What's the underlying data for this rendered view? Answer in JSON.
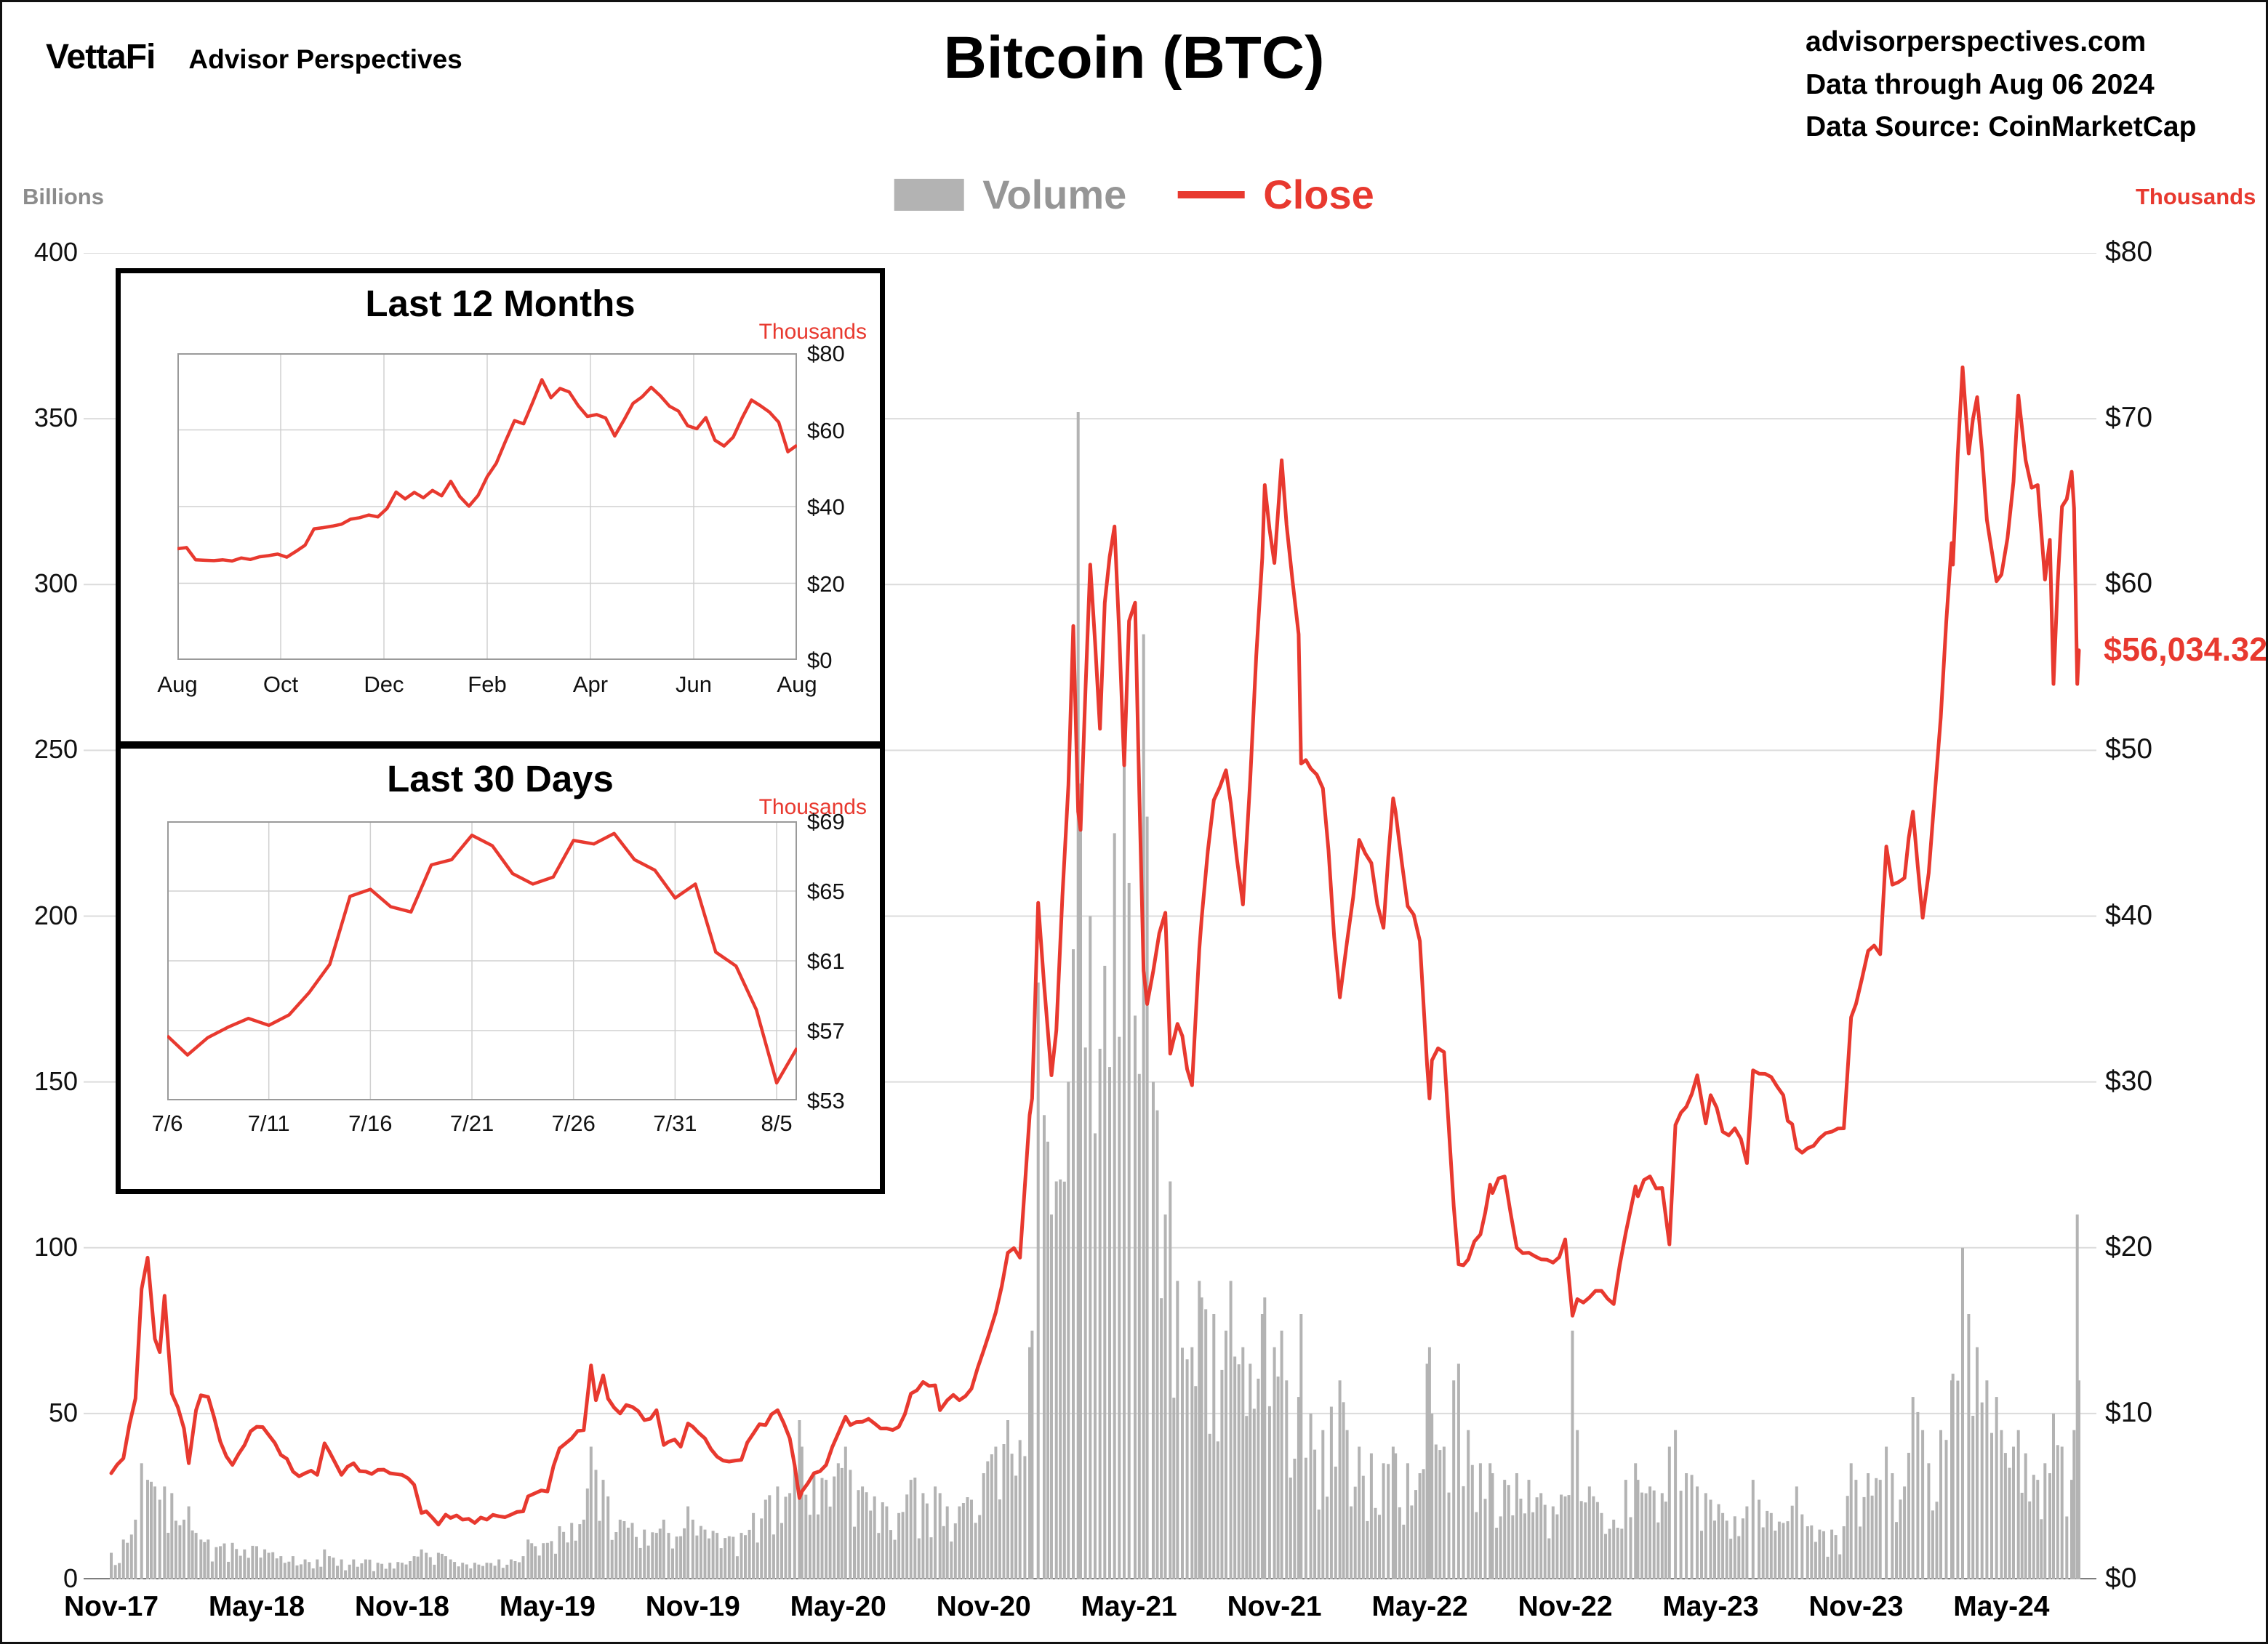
{
  "header": {
    "logo": "VettaFi",
    "logo_sub": "Advisor Perspectives",
    "title": "Bitcoin (BTC)",
    "info_lines": [
      "advisorperspectives.com",
      "Data through Aug 06 2024",
      "Data Source: CoinMarketCap"
    ]
  },
  "legend": {
    "volume_label": "Volume",
    "close_label": "Close"
  },
  "colors": {
    "close": "#e8392f",
    "volume": "#b3b3b3",
    "grid": "#dcdcdc",
    "axis": "#444444",
    "legend_volume_text": "#969696"
  },
  "chart_data": [
    {
      "type": "line",
      "title": "Bitcoin (BTC)",
      "series": [
        {
          "name": "Volume",
          "type": "bar",
          "axis": "left",
          "unit": "billions USD"
        },
        {
          "name": "Close",
          "type": "line",
          "axis": "right",
          "unit": "thousands USD"
        }
      ],
      "left_axis": {
        "label": "Billions",
        "range": [
          0,
          400
        ],
        "ticks": [
          "400",
          "350",
          "300",
          "250",
          "200",
          "150",
          "100",
          "50",
          "0"
        ]
      },
      "right_axis": {
        "label": "Thousands",
        "range": [
          0,
          80
        ],
        "ticks": [
          "$80",
          "$70",
          "$60",
          "$50",
          "$40",
          "$30",
          "$20",
          "$10",
          "$0"
        ]
      },
      "x_axis": {
        "ticks": [
          {
            "label": "Nov-17",
            "m": 0
          },
          {
            "label": "May-18",
            "m": 6
          },
          {
            "label": "Nov-18",
            "m": 12
          },
          {
            "label": "May-19",
            "m": 18
          },
          {
            "label": "Nov-19",
            "m": 24
          },
          {
            "label": "May-20",
            "m": 30
          },
          {
            "label": "Nov-20",
            "m": 36
          },
          {
            "label": "May-21",
            "m": 42
          },
          {
            "label": "Nov-21",
            "m": 48
          },
          {
            "label": "May-22",
            "m": 54
          },
          {
            "label": "Nov-22",
            "m": 60
          },
          {
            "label": "May-23",
            "m": 66
          },
          {
            "label": "Nov-23",
            "m": 72
          },
          {
            "label": "May-24",
            "m": 78
          }
        ],
        "span_months": 81.2
      },
      "last_close_label": "$56,034.32",
      "last_close_value": 56.034,
      "points_format": [
        "month_offset_from_Nov-2017",
        "close_usd_thousands",
        "volume_usd_billions"
      ],
      "points": [
        [
          0,
          6.4,
          8
        ],
        [
          0.5,
          7.3,
          12
        ],
        [
          1,
          10.9,
          18
        ],
        [
          1.25,
          17.5,
          35
        ],
        [
          1.5,
          19.4,
          30
        ],
        [
          1.8,
          14.5,
          28
        ],
        [
          2,
          13.7,
          24
        ],
        [
          2.2,
          17.1,
          28
        ],
        [
          2.5,
          11.2,
          26
        ],
        [
          3,
          9.1,
          18
        ],
        [
          3.2,
          7.0,
          22
        ],
        [
          3.5,
          10.2,
          14
        ],
        [
          3.7,
          11.1,
          12
        ],
        [
          4,
          11.0,
          12
        ],
        [
          4.5,
          8.3,
          10
        ],
        [
          5,
          6.9,
          11
        ],
        [
          5.5,
          8.1,
          9
        ],
        [
          6,
          9.2,
          10
        ],
        [
          6.5,
          8.7,
          8
        ],
        [
          7,
          7.5,
          7
        ],
        [
          7.5,
          6.5,
          7
        ],
        [
          8,
          6.4,
          6
        ],
        [
          8.5,
          6.3,
          6
        ],
        [
          8.8,
          8.2,
          9
        ],
        [
          9,
          7.7,
          7
        ],
        [
          9.5,
          6.3,
          6
        ],
        [
          10,
          7.0,
          6
        ],
        [
          10.5,
          6.5,
          6
        ],
        [
          11,
          6.6,
          5
        ],
        [
          11.5,
          6.4,
          5
        ],
        [
          12,
          6.3,
          5
        ],
        [
          12.5,
          5.7,
          7
        ],
        [
          12.8,
          4.0,
          9
        ],
        [
          13,
          4.1,
          8
        ],
        [
          13.5,
          3.3,
          8
        ],
        [
          13.8,
          3.9,
          7
        ],
        [
          14,
          3.7,
          6
        ],
        [
          14.5,
          3.6,
          5
        ],
        [
          15,
          3.4,
          5
        ],
        [
          15.5,
          3.6,
          5
        ],
        [
          16,
          3.8,
          6
        ],
        [
          16.5,
          3.9,
          6
        ],
        [
          17,
          4.1,
          7
        ],
        [
          17.2,
          5.0,
          12
        ],
        [
          17.5,
          5.2,
          10
        ],
        [
          18,
          5.3,
          11
        ],
        [
          18.5,
          7.9,
          16
        ],
        [
          19,
          8.5,
          17
        ],
        [
          19.5,
          9.0,
          18
        ],
        [
          19.8,
          12.9,
          40
        ],
        [
          20,
          10.8,
          33
        ],
        [
          20.3,
          12.3,
          30
        ],
        [
          20.5,
          10.9,
          25
        ],
        [
          21,
          10.0,
          18
        ],
        [
          21.5,
          10.4,
          17
        ],
        [
          22,
          9.6,
          15
        ],
        [
          22.5,
          10.2,
          14
        ],
        [
          22.8,
          8.1,
          18
        ],
        [
          23,
          8.3,
          14
        ],
        [
          23.5,
          8.0,
          13
        ],
        [
          23.8,
          9.4,
          22
        ],
        [
          24,
          9.2,
          18
        ],
        [
          24.5,
          8.5,
          15
        ],
        [
          25,
          7.4,
          14
        ],
        [
          25.5,
          7.1,
          13
        ],
        [
          26,
          7.2,
          14
        ],
        [
          26.5,
          8.8,
          20
        ],
        [
          27,
          9.3,
          24
        ],
        [
          27.5,
          10.2,
          28
        ],
        [
          28,
          8.5,
          26
        ],
        [
          28.4,
          4.9,
          48
        ],
        [
          28.5,
          5.3,
          40
        ],
        [
          29,
          6.4,
          32
        ],
        [
          29.5,
          6.9,
          30
        ],
        [
          30,
          8.8,
          35
        ],
        [
          30.3,
          9.8,
          40
        ],
        [
          30.5,
          9.3,
          33
        ],
        [
          31,
          9.5,
          28
        ],
        [
          31.5,
          9.4,
          25
        ],
        [
          32,
          9.1,
          22
        ],
        [
          32.5,
          9.2,
          20
        ],
        [
          33,
          11.2,
          30
        ],
        [
          33.5,
          11.9,
          26
        ],
        [
          34,
          11.7,
          28
        ],
        [
          34.2,
          10.2,
          26
        ],
        [
          34.5,
          10.8,
          22
        ],
        [
          35,
          10.8,
          22
        ],
        [
          35.5,
          11.5,
          24
        ],
        [
          36,
          13.8,
          32
        ],
        [
          36.5,
          16.1,
          40
        ],
        [
          37,
          19.7,
          48
        ],
        [
          37.5,
          19.4,
          42
        ],
        [
          37.9,
          28.0,
          70
        ],
        [
          38,
          29.0,
          75
        ],
        [
          38.25,
          40.8,
          180
        ],
        [
          38.5,
          35.8,
          140
        ],
        [
          38.8,
          30.4,
          110
        ],
        [
          39,
          33.1,
          120
        ],
        [
          39.5,
          47.9,
          150
        ],
        [
          39.7,
          57.5,
          190
        ],
        [
          39.9,
          46.3,
          352
        ],
        [
          40,
          45.2,
          240
        ],
        [
          40.4,
          61.2,
          200
        ],
        [
          40.8,
          51.3,
          160
        ],
        [
          41,
          58.9,
          185
        ],
        [
          41.4,
          63.5,
          225
        ],
        [
          41.8,
          49.1,
          255
        ],
        [
          42,
          57.8,
          210
        ],
        [
          42.25,
          58.9,
          170
        ],
        [
          42.6,
          36.7,
          285
        ],
        [
          42.75,
          34.7,
          230
        ],
        [
          43,
          36.7,
          150
        ],
        [
          43.5,
          40.2,
          110
        ],
        [
          43.7,
          31.7,
          120
        ],
        [
          44,
          33.5,
          90
        ],
        [
          44.6,
          29.8,
          70
        ],
        [
          44.9,
          38.0,
          90
        ],
        [
          45,
          39.9,
          85
        ],
        [
          45.5,
          47.0,
          80
        ],
        [
          46,
          48.8,
          75
        ],
        [
          46.2,
          46.8,
          90
        ],
        [
          46.7,
          40.7,
          70
        ],
        [
          47,
          48.2,
          65
        ],
        [
          47.5,
          61.6,
          80
        ],
        [
          47.6,
          66.0,
          85
        ],
        [
          48,
          61.3,
          70
        ],
        [
          48.3,
          67.5,
          75
        ],
        [
          48.5,
          63.6,
          60
        ],
        [
          49,
          57.0,
          55
        ],
        [
          49.1,
          49.2,
          80
        ],
        [
          49.5,
          48.9,
          50
        ],
        [
          50,
          47.7,
          45
        ],
        [
          50.7,
          35.1,
          60
        ],
        [
          51,
          38.5,
          45
        ],
        [
          51.5,
          44.6,
          40
        ],
        [
          52,
          43.2,
          38
        ],
        [
          52.5,
          39.3,
          35
        ],
        [
          52.9,
          47.1,
          40
        ],
        [
          53,
          46.3,
          38
        ],
        [
          53.5,
          40.6,
          35
        ],
        [
          54,
          38.5,
          32
        ],
        [
          54.3,
          31.0,
          65
        ],
        [
          54.4,
          29.0,
          70
        ],
        [
          54.5,
          31.3,
          50
        ],
        [
          55,
          31.8,
          40
        ],
        [
          55.4,
          22.5,
          60
        ],
        [
          55.6,
          19.0,
          65
        ],
        [
          56,
          19.3,
          45
        ],
        [
          56.5,
          20.8,
          35
        ],
        [
          56.9,
          23.8,
          35
        ],
        [
          57,
          23.3,
          32
        ],
        [
          57.5,
          24.3,
          30
        ],
        [
          58,
          20.0,
          32
        ],
        [
          58.5,
          19.7,
          30
        ],
        [
          59,
          19.3,
          26
        ],
        [
          59.5,
          19.1,
          22
        ],
        [
          60,
          20.5,
          25
        ],
        [
          60.3,
          15.9,
          75
        ],
        [
          60.5,
          16.9,
          45
        ],
        [
          61,
          17.0,
          28
        ],
        [
          61.5,
          17.4,
          20
        ],
        [
          62,
          16.6,
          18
        ],
        [
          62.5,
          20.9,
          30
        ],
        [
          62.9,
          23.7,
          35
        ],
        [
          63,
          23.1,
          30
        ],
        [
          63.5,
          24.3,
          28
        ],
        [
          64,
          23.6,
          26
        ],
        [
          64.3,
          20.2,
          40
        ],
        [
          64.55,
          27.4,
          45
        ],
        [
          65,
          28.5,
          32
        ],
        [
          65.45,
          30.4,
          28
        ],
        [
          65.8,
          27.5,
          26
        ],
        [
          66,
          29.2,
          24
        ],
        [
          66.5,
          27.0,
          20
        ],
        [
          67,
          27.2,
          19
        ],
        [
          67.5,
          25.1,
          22
        ],
        [
          67.75,
          30.7,
          30
        ],
        [
          68,
          30.5,
          24
        ],
        [
          68.5,
          30.3,
          20
        ],
        [
          69,
          29.2,
          17
        ],
        [
          69.55,
          26.0,
          28
        ],
        [
          70,
          26.0,
          16
        ],
        [
          70.5,
          26.6,
          15
        ],
        [
          71,
          27.0,
          15
        ],
        [
          71.5,
          27.2,
          16
        ],
        [
          71.8,
          33.9,
          35
        ],
        [
          72,
          34.7,
          30
        ],
        [
          72.5,
          37.9,
          32
        ],
        [
          73,
          37.7,
          30
        ],
        [
          73.25,
          44.2,
          40
        ],
        [
          73.5,
          41.9,
          32
        ],
        [
          74,
          42.3,
          28
        ],
        [
          74.35,
          46.3,
          55
        ],
        [
          74.75,
          39.9,
          45
        ],
        [
          75,
          42.6,
          35
        ],
        [
          75.5,
          52.0,
          45
        ],
        [
          75.95,
          62.5,
          60
        ],
        [
          76,
          61.2,
          62
        ],
        [
          76.4,
          73.1,
          100
        ],
        [
          76.65,
          67.9,
          80
        ],
        [
          77,
          71.3,
          70
        ],
        [
          77.4,
          63.9,
          60
        ],
        [
          77.8,
          60.2,
          55
        ],
        [
          78,
          60.6,
          45
        ],
        [
          78.5,
          66.2,
          40
        ],
        [
          78.7,
          71.4,
          45
        ],
        [
          79,
          67.5,
          38
        ],
        [
          79.5,
          66.0,
          30
        ],
        [
          79.8,
          60.3,
          35
        ],
        [
          80,
          62.7,
          32
        ],
        [
          80.15,
          54.0,
          50
        ],
        [
          80.5,
          64.7,
          40
        ],
        [
          80.9,
          66.8,
          30
        ],
        [
          81,
          64.6,
          45
        ],
        [
          81.13,
          54.0,
          110
        ],
        [
          81.2,
          56.03,
          60
        ]
      ]
    },
    {
      "type": "line",
      "title": "Last 12 Months",
      "y_axis": {
        "label": "Thousands",
        "range": [
          0,
          80
        ],
        "ticks": [
          "$80",
          "$60",
          "$40",
          "$20",
          "$0"
        ]
      },
      "x_ticks": [
        {
          "label": "Aug",
          "m": 0
        },
        {
          "label": "Oct",
          "m": 2
        },
        {
          "label": "Dec",
          "m": 4
        },
        {
          "label": "Feb",
          "m": 6
        },
        {
          "label": "Apr",
          "m": 8
        },
        {
          "label": "Jun",
          "m": 10
        },
        {
          "label": "Aug",
          "m": 12
        }
      ],
      "span_months": 12,
      "values": [
        29.0,
        29.3,
        26.1,
        26.0,
        25.9,
        26.1,
        25.8,
        26.6,
        26.2,
        26.9,
        27.2,
        27.6,
        26.8,
        28.3,
        29.9,
        34.2,
        34.5,
        34.9,
        35.4,
        36.7,
        37.1,
        37.8,
        37.3,
        39.5,
        43.8,
        42.0,
        43.7,
        42.3,
        44.2,
        42.8,
        46.6,
        42.6,
        40.1,
        42.9,
        47.8,
        51.3,
        57.0,
        62.4,
        61.6,
        67.2,
        73.1,
        68.4,
        70.8,
        69.9,
        66.3,
        63.5,
        64.0,
        63.1,
        58.4,
        62.5,
        66.9,
        68.6,
        71.1,
        68.9,
        66.2,
        64.9,
        61.1,
        60.3,
        63.2,
        57.3,
        55.8,
        58.1,
        63.2,
        67.8,
        66.3,
        64.6,
        62.0,
        54.3,
        56.0
      ]
    },
    {
      "type": "line",
      "title": "Last 30 Days",
      "y_axis": {
        "label": "Thousands",
        "range": [
          53,
          69
        ],
        "ticks": [
          "$69",
          "$65",
          "$61",
          "$57",
          "$53"
        ]
      },
      "x_ticks": [
        {
          "label": "7/6",
          "d": 0
        },
        {
          "label": "7/11",
          "d": 5
        },
        {
          "label": "7/16",
          "d": 10
        },
        {
          "label": "7/21",
          "d": 15
        },
        {
          "label": "7/26",
          "d": 20
        },
        {
          "label": "7/31",
          "d": 25
        },
        {
          "label": "8/5",
          "d": 30
        }
      ],
      "span_days": 31,
      "values": [
        56.7,
        55.6,
        56.6,
        57.2,
        57.7,
        57.3,
        57.9,
        59.2,
        60.8,
        64.7,
        65.1,
        64.1,
        63.8,
        66.5,
        66.8,
        68.2,
        67.6,
        66.0,
        65.4,
        65.8,
        67.9,
        67.7,
        68.3,
        66.8,
        66.2,
        64.6,
        65.4,
        61.5,
        60.7,
        58.2,
        54.0,
        56.0
      ]
    }
  ]
}
